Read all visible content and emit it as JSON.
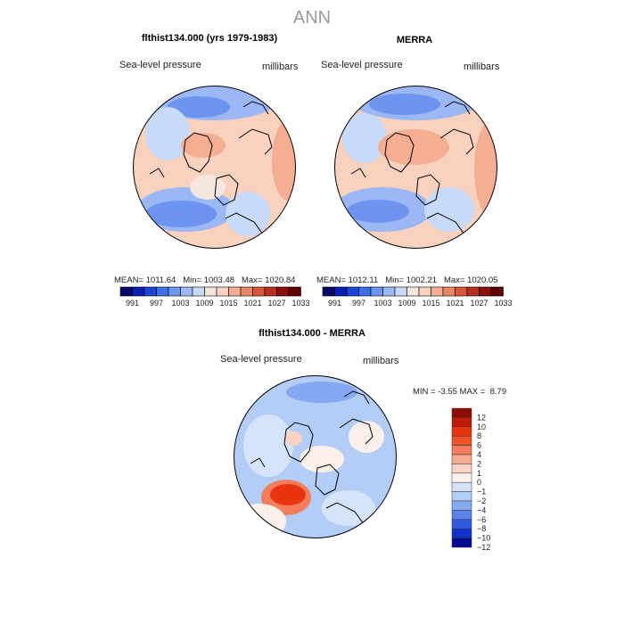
{
  "title": "ANN",
  "chart_data": [
    {
      "type": "polar_contour_map",
      "title": "flthist134.000 (yrs 1979-1983)",
      "variable": "Sea-level pressure",
      "units": "millibars",
      "stats": {
        "mean_label": "MEAN=",
        "mean": "1011.64",
        "min_label": "Min=",
        "min": "1003.48",
        "max_label": "Max=",
        "max": "1020.84"
      },
      "colorbar": {
        "ticks": [
          "991",
          "997",
          "1003",
          "1009",
          "1015",
          "1021",
          "1027",
          "1033"
        ]
      }
    },
    {
      "type": "polar_contour_map",
      "title": "MERRA",
      "variable": "Sea-level pressure",
      "units": "millibars",
      "stats": {
        "mean_label": "MEAN=",
        "mean": "1012.11",
        "min_label": "Min=",
        "min": "1002.21",
        "max_label": "Max=",
        "max": "1020.05"
      },
      "colorbar": {
        "ticks": [
          "991",
          "997",
          "1003",
          "1009",
          "1015",
          "1021",
          "1027",
          "1033"
        ]
      }
    },
    {
      "type": "polar_contour_map",
      "title": "flthist134.000 - MERRA",
      "variable": "Sea-level pressure",
      "units": "millibars",
      "stats": {
        "min_label": "MIN =",
        "min": "-3.55",
        "max_label": "MAX =",
        "max": "8.79"
      },
      "colorbar": {
        "ticks": [
          "12",
          "10",
          "8",
          "6",
          "4",
          "2",
          "1",
          "0",
          "−1",
          "−2",
          "−4",
          "−6",
          "−8",
          "−10",
          "−12"
        ]
      }
    }
  ],
  "colors": {
    "abs_levels": [
      "#08086b",
      "#0a1fb4",
      "#1a45d6",
      "#3d6fe6",
      "#6d94ee",
      "#9bb8f4",
      "#c7daf9",
      "#f5e7e0",
      "#f9d2bf",
      "#f4ae92",
      "#e98868",
      "#d7593d",
      "#b9311e",
      "#8c0f0b",
      "#600404"
    ],
    "diff_levels": [
      "#8c0c05",
      "#c21a08",
      "#e83510",
      "#f0522a",
      "#f37d5d",
      "#f7ab90",
      "#fad3c4",
      "#fcf0ea",
      "#d6e4fb",
      "#b3cdf7",
      "#86aaf2",
      "#5a82ea",
      "#3358e0",
      "#1030cc",
      "#06088f"
    ]
  }
}
